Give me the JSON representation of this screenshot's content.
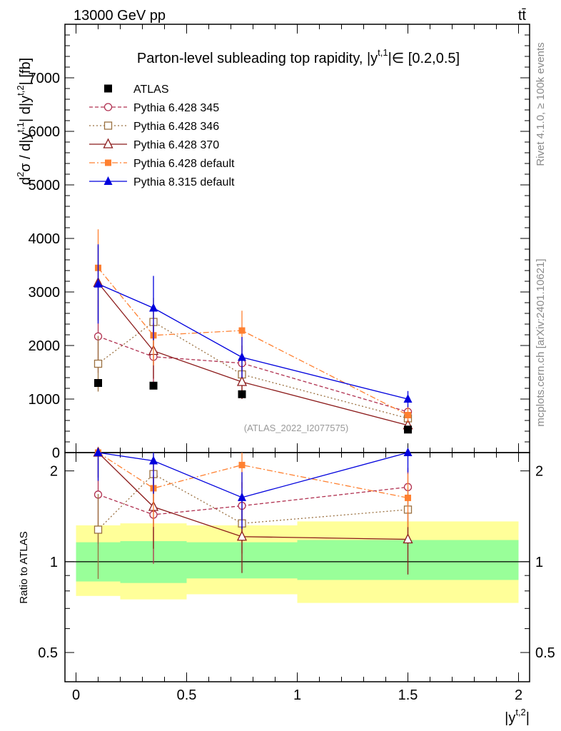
{
  "header": {
    "energy": "13000 GeV pp",
    "process": "tt̄"
  },
  "side_labels": {
    "rivet": "Rivet 4.1.0, ≥ 100k events",
    "mcplots": "mcplots.cern.ch [arXiv:2401.10621]"
  },
  "chart_data": {
    "type": "scatter",
    "title": "Parton-level subleading top rapidity, |y^{t,1}| ∈ [0.2,0.5]",
    "title_parts": {
      "prefix": "Parton-level subleading top rapidity, |y",
      "sup": "t,1",
      "suffix": "|∈ [0.2,0.5]"
    },
    "watermark": "(ATLAS_2022_I2077575)",
    "xlabel": "|y^{t,2}|",
    "ylabel": "d²σ / d|y^{t,1}| d|y^{t,2}| [fb]",
    "ratio_ylabel": "Ratio to ATLAS",
    "xlim": [
      -0.05,
      2.05
    ],
    "ylim": [
      0,
      8000
    ],
    "ratio_ylim": [
      0.4,
      2.3
    ],
    "x_ticks": [
      "0",
      "0.5",
      "1",
      "1.5",
      "2"
    ],
    "y_ticks": [
      "0",
      "1000",
      "2000",
      "3000",
      "4000",
      "5000",
      "6000",
      "7000"
    ],
    "ratio_ticks": [
      "0.5",
      "1",
      "2"
    ],
    "bins": [
      [
        0.0,
        0.2
      ],
      [
        0.2,
        0.5
      ],
      [
        0.5,
        1.0
      ],
      [
        1.0,
        2.0
      ]
    ],
    "x": [
      0.1,
      0.35,
      0.75,
      1.5
    ],
    "data": {
      "name": "ATLAS",
      "values": [
        1300,
        1250,
        1090,
        430
      ],
      "band_1sigma": [
        [
          0.86,
          1.16
        ],
        [
          0.85,
          1.17
        ],
        [
          0.88,
          1.16
        ],
        [
          0.87,
          1.18
        ]
      ],
      "band_2sigma": [
        [
          0.77,
          1.32
        ],
        [
          0.75,
          1.34
        ],
        [
          0.78,
          1.32
        ],
        [
          0.73,
          1.36
        ]
      ]
    },
    "series": [
      {
        "name": "Pythia 6.428 345",
        "color": "#b03050",
        "dash": "5,3",
        "marker": "open-circle",
        "values": [
          2170,
          1790,
          1670,
          760
        ],
        "errors": [
          680,
          560,
          330,
          120
        ]
      },
      {
        "name": "Pythia 6.428 346",
        "color": "#9a7040",
        "dash": "2,3",
        "marker": "open-square",
        "values": [
          1660,
          2440,
          1460,
          640
        ],
        "errors": [
          520,
          450,
          300,
          120
        ]
      },
      {
        "name": "Pythia 6.428 370",
        "color": "#8b1a1a",
        "dash": "",
        "marker": "open-triangle",
        "values": [
          3170,
          1900,
          1320,
          510
        ],
        "errors": [
          700,
          520,
          320,
          120
        ]
      },
      {
        "name": "Pythia 6.428 default",
        "color": "#ff8030",
        "dash": "8,3,2,3",
        "marker": "filled-square",
        "values": [
          3450,
          2190,
          2280,
          700
        ],
        "errors": [
          720,
          560,
          370,
          140
        ]
      },
      {
        "name": "Pythia 8.315 default",
        "color": "#0000dd",
        "dash": "",
        "marker": "filled-triangle",
        "values": [
          3150,
          2700,
          1780,
          1000
        ],
        "errors": [
          740,
          600,
          380,
          150
        ]
      }
    ]
  }
}
